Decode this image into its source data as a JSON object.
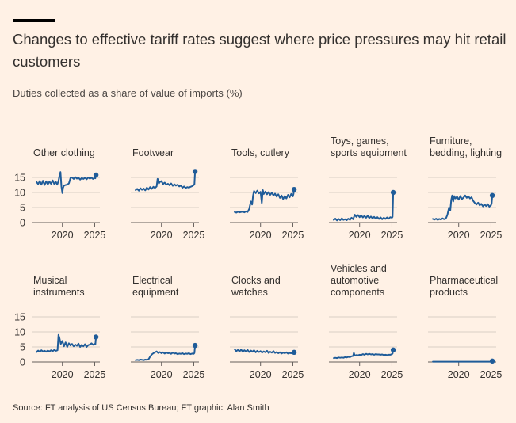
{
  "title": "Changes to effective tariff rates suggest where price pressures may hit retail customers",
  "subtitle": "Duties collected as a share of value of imports (%)",
  "source": "Source: FT analysis of US Census Bureau; FT graphic: Alan Smith",
  "colors": {
    "background": "#fff1e5",
    "line": "#1f5c99",
    "grid": "#d9cec5",
    "text": "#33302e"
  },
  "chart_data": [
    {
      "type": "line",
      "title_lines": [
        "Other clothing"
      ],
      "y_ticks": [
        0,
        5,
        10,
        15
      ],
      "x_ticks": [
        2020,
        2025
      ],
      "xlim": [
        2015.5,
        2025.8
      ],
      "ylim": [
        0,
        18
      ],
      "series": [
        {
          "x": [
            2016,
            2016.25,
            2016.5,
            2016.75,
            2017,
            2017.25,
            2017.5,
            2017.75,
            2018,
            2018.25,
            2018.5,
            2018.75,
            2019,
            2019.2,
            2019.4,
            2019.55,
            2019.7,
            2019.85,
            2020,
            2020.1,
            2020.25,
            2020.5,
            2020.75,
            2021,
            2021.25,
            2021.5,
            2021.75,
            2022,
            2022.25,
            2022.5,
            2022.75,
            2023,
            2023.25,
            2023.5,
            2023.75,
            2024,
            2024.25,
            2024.5,
            2024.75,
            2025,
            2025.1,
            2025.2
          ],
          "y": [
            13.5,
            12.8,
            13.8,
            12.6,
            13.9,
            12.5,
            13.7,
            12.7,
            13.6,
            12.9,
            14.0,
            12.8,
            13.5,
            12.6,
            13.8,
            15.5,
            16.8,
            12.0,
            9.8,
            11.5,
            12.3,
            12.5,
            12.6,
            13.0,
            14.8,
            15.0,
            14.5,
            15.1,
            14.6,
            14.9,
            14.3,
            14.8,
            14.5,
            14.9,
            14.4,
            15.0,
            14.6,
            14.9,
            14.5,
            14.8,
            14.7,
            15.8
          ]
        }
      ]
    },
    {
      "type": "line",
      "title_lines": [
        "Footwear"
      ],
      "y_ticks": [
        0,
        5,
        10,
        15
      ],
      "x_ticks": [
        2020,
        2025
      ],
      "xlim": [
        2015.5,
        2025.8
      ],
      "ylim": [
        0,
        18
      ],
      "series": [
        {
          "x": [
            2016,
            2016.25,
            2016.5,
            2016.75,
            2017,
            2017.25,
            2017.5,
            2017.75,
            2018,
            2018.25,
            2018.5,
            2018.75,
            2019,
            2019.25,
            2019.4,
            2019.5,
            2019.6,
            2019.75,
            2020,
            2020.25,
            2020.5,
            2020.75,
            2021,
            2021.25,
            2021.5,
            2021.75,
            2022,
            2022.25,
            2022.5,
            2022.75,
            2023,
            2023.25,
            2023.5,
            2023.75,
            2024,
            2024.25,
            2024.5,
            2024.75,
            2025,
            2025.1,
            2025.2
          ],
          "y": [
            10.8,
            11.2,
            10.6,
            11.4,
            10.9,
            11.3,
            10.7,
            11.6,
            11.0,
            11.8,
            11.2,
            11.9,
            11.5,
            12.0,
            14.5,
            14.2,
            13.0,
            13.5,
            13.8,
            12.8,
            13.3,
            12.6,
            12.9,
            12.4,
            13.0,
            12.2,
            12.7,
            12.3,
            12.6,
            12.0,
            12.3,
            11.6,
            12.0,
            11.5,
            11.8,
            11.6,
            11.9,
            12.1,
            12.5,
            12.8,
            17.0
          ]
        }
      ]
    },
    {
      "type": "line",
      "title_lines": [
        "Tools, cutlery"
      ],
      "y_ticks": [
        0,
        5,
        10,
        15
      ],
      "x_ticks": [
        2020,
        2025
      ],
      "xlim": [
        2015.5,
        2025.8
      ],
      "ylim": [
        0,
        18
      ],
      "series": [
        {
          "x": [
            2016,
            2016.25,
            2016.5,
            2016.75,
            2017,
            2017.25,
            2017.5,
            2017.75,
            2018,
            2018.25,
            2018.5,
            2018.7,
            2018.85,
            2019,
            2019.25,
            2019.5,
            2019.75,
            2020,
            2020.2,
            2020.35,
            2020.5,
            2020.75,
            2021,
            2021.25,
            2021.5,
            2021.75,
            2022,
            2022.25,
            2022.5,
            2022.75,
            2023,
            2023.25,
            2023.5,
            2023.75,
            2024,
            2024.25,
            2024.5,
            2024.75,
            2025,
            2025.1,
            2025.2
          ],
          "y": [
            3.5,
            3.3,
            3.6,
            3.4,
            3.5,
            3.6,
            3.4,
            3.7,
            3.5,
            4.5,
            7.0,
            6.0,
            9.0,
            10.5,
            9.8,
            10.6,
            9.7,
            10.2,
            6.5,
            10.8,
            9.5,
            10.3,
            9.4,
            10.1,
            9.2,
            9.9,
            9.0,
            9.6,
            8.6,
            9.4,
            8.2,
            9.0,
            7.8,
            8.8,
            8.0,
            9.2,
            8.4,
            9.5,
            8.7,
            9.5,
            11.0
          ]
        }
      ]
    },
    {
      "type": "line",
      "title_lines": [
        "Toys, games,",
        "sports equipment"
      ],
      "y_ticks": [
        0,
        5,
        10,
        15
      ],
      "x_ticks": [
        2020,
        2025
      ],
      "xlim": [
        2015.5,
        2025.8
      ],
      "ylim": [
        0,
        18
      ],
      "series": [
        {
          "x": [
            2016,
            2016.25,
            2016.5,
            2016.75,
            2017,
            2017.25,
            2017.5,
            2017.75,
            2018,
            2018.25,
            2018.5,
            2018.75,
            2019,
            2019.25,
            2019.5,
            2019.75,
            2020,
            2020.25,
            2020.5,
            2020.75,
            2021,
            2021.25,
            2021.5,
            2021.75,
            2022,
            2022.25,
            2022.5,
            2022.75,
            2023,
            2023.25,
            2023.5,
            2023.75,
            2024,
            2024.25,
            2024.5,
            2024.75,
            2025,
            2025.1,
            2025.2
          ],
          "y": [
            0.9,
            1.3,
            0.7,
            1.2,
            0.8,
            1.4,
            0.9,
            1.1,
            0.8,
            1.3,
            0.9,
            1.6,
            1.1,
            2.6,
            1.9,
            2.5,
            1.8,
            2.4,
            1.7,
            2.2,
            1.6,
            2.3,
            1.5,
            2.0,
            1.4,
            1.9,
            1.3,
            1.8,
            1.2,
            1.7,
            1.1,
            1.6,
            1.2,
            1.7,
            1.3,
            1.8,
            1.6,
            1.9,
            10.0
          ]
        }
      ]
    },
    {
      "type": "line",
      "title_lines": [
        "Furniture,",
        "bedding, lighting"
      ],
      "y_ticks": [
        0,
        5,
        10,
        15
      ],
      "x_ticks": [
        2020,
        2025
      ],
      "xlim": [
        2015.5,
        2025.8
      ],
      "ylim": [
        0,
        18
      ],
      "series": [
        {
          "x": [
            2016,
            2016.25,
            2016.5,
            2016.75,
            2017,
            2017.25,
            2017.5,
            2017.75,
            2018,
            2018.25,
            2018.5,
            2018.7,
            2018.85,
            2019,
            2019.15,
            2019.3,
            2019.5,
            2019.75,
            2020,
            2020.25,
            2020.5,
            2020.75,
            2021,
            2021.25,
            2021.5,
            2021.75,
            2022,
            2022.25,
            2022.5,
            2022.75,
            2023,
            2023.25,
            2023.5,
            2023.75,
            2024,
            2024.25,
            2024.5,
            2024.75,
            2025,
            2025.1,
            2025.2
          ],
          "y": [
            1.2,
            1.0,
            1.3,
            0.9,
            1.2,
            1.0,
            1.4,
            1.1,
            1.3,
            2.5,
            5.0,
            4.0,
            7.5,
            9.0,
            7.0,
            8.8,
            8.0,
            8.6,
            7.6,
            8.8,
            7.8,
            8.3,
            9.0,
            8.2,
            8.7,
            8.0,
            8.4,
            7.2,
            6.5,
            6.0,
            6.6,
            5.7,
            6.2,
            5.4,
            6.0,
            5.5,
            6.1,
            5.3,
            5.8,
            6.4,
            9.0
          ]
        }
      ]
    },
    {
      "type": "line",
      "title_lines": [
        "Musical",
        "instruments"
      ],
      "y_ticks": [
        0,
        5,
        10,
        15
      ],
      "x_ticks": [
        2020,
        2025
      ],
      "xlim": [
        2015.5,
        2025.8
      ],
      "ylim": [
        0,
        18
      ],
      "series": [
        {
          "x": [
            2016,
            2016.25,
            2016.5,
            2016.75,
            2017,
            2017.25,
            2017.5,
            2017.75,
            2018,
            2018.25,
            2018.5,
            2018.75,
            2019,
            2019.25,
            2019.4,
            2019.55,
            2019.75,
            2020,
            2020.25,
            2020.5,
            2020.75,
            2021,
            2021.25,
            2021.5,
            2021.75,
            2022,
            2022.25,
            2022.5,
            2022.75,
            2023,
            2023.25,
            2023.5,
            2023.75,
            2024,
            2024.25,
            2024.5,
            2024.75,
            2025,
            2025.1,
            2025.2
          ],
          "y": [
            3.3,
            3.8,
            3.4,
            3.9,
            3.5,
            3.7,
            3.4,
            3.8,
            3.5,
            3.9,
            3.6,
            4.0,
            3.7,
            3.9,
            9.0,
            8.0,
            6.0,
            7.0,
            5.2,
            6.5,
            5.0,
            6.2,
            5.5,
            6.0,
            5.2,
            5.8,
            5.4,
            6.1,
            5.0,
            5.7,
            5.2,
            5.9,
            5.0,
            5.6,
            5.8,
            6.2,
            5.7,
            6.0,
            5.8,
            8.3
          ]
        }
      ]
    },
    {
      "type": "line",
      "title_lines": [
        "Electrical",
        "equipment"
      ],
      "y_ticks": [
        0,
        5,
        10,
        15
      ],
      "x_ticks": [
        2020,
        2025
      ],
      "xlim": [
        2015.5,
        2025.8
      ],
      "ylim": [
        0,
        18
      ],
      "series": [
        {
          "x": [
            2016,
            2016.25,
            2016.5,
            2016.75,
            2017,
            2017.25,
            2017.5,
            2017.75,
            2018,
            2018.25,
            2018.5,
            2018.75,
            2019,
            2019.25,
            2019.5,
            2019.75,
            2020,
            2020.25,
            2020.5,
            2020.75,
            2021,
            2021.25,
            2021.5,
            2021.75,
            2022,
            2022.25,
            2022.5,
            2022.75,
            2023,
            2023.25,
            2023.5,
            2023.75,
            2024,
            2024.25,
            2024.5,
            2024.75,
            2025,
            2025.1,
            2025.2
          ],
          "y": [
            0.6,
            0.7,
            0.6,
            0.8,
            0.7,
            0.6,
            0.8,
            0.7,
            0.9,
            1.8,
            2.5,
            2.9,
            3.2,
            3.5,
            3.0,
            3.3,
            2.9,
            3.2,
            2.8,
            3.1,
            2.9,
            3.0,
            2.7,
            3.1,
            2.8,
            2.9,
            2.6,
            2.8,
            2.7,
            2.9,
            2.6,
            2.8,
            2.7,
            2.9,
            2.6,
            2.8,
            2.7,
            3.0,
            5.5
          ]
        }
      ]
    },
    {
      "type": "line",
      "title_lines": [
        "Clocks and",
        "watches"
      ],
      "y_ticks": [
        0,
        5,
        10,
        15
      ],
      "x_ticks": [
        2020,
        2025
      ],
      "xlim": [
        2015.5,
        2025.8
      ],
      "ylim": [
        0,
        18
      ],
      "series": [
        {
          "x": [
            2016,
            2016.25,
            2016.5,
            2016.75,
            2017,
            2017.25,
            2017.5,
            2017.75,
            2018,
            2018.25,
            2018.5,
            2018.75,
            2019,
            2019.25,
            2019.5,
            2019.75,
            2020,
            2020.25,
            2020.5,
            2020.75,
            2021,
            2021.25,
            2021.5,
            2021.75,
            2022,
            2022.25,
            2022.5,
            2022.75,
            2023,
            2023.25,
            2023.5,
            2023.75,
            2024,
            2024.25,
            2024.5,
            2024.75,
            2025,
            2025.1,
            2025.2
          ],
          "y": [
            4.2,
            3.6,
            4.0,
            3.5,
            4.1,
            3.4,
            3.9,
            3.5,
            4.0,
            3.3,
            3.8,
            3.4,
            3.9,
            3.2,
            3.7,
            3.3,
            3.6,
            3.1,
            3.5,
            3.2,
            3.7,
            3.0,
            3.4,
            3.1,
            3.6,
            3.0,
            3.3,
            2.9,
            3.2,
            2.8,
            3.1,
            2.9,
            3.2,
            2.8,
            3.0,
            2.9,
            3.1,
            2.9,
            3.2
          ]
        }
      ]
    },
    {
      "type": "line",
      "title_lines": [
        "Vehicles and",
        "automotive",
        "components"
      ],
      "y_ticks": [
        0,
        5,
        10,
        15
      ],
      "x_ticks": [
        2020,
        2025
      ],
      "xlim": [
        2015.5,
        2025.8
      ],
      "ylim": [
        0,
        18
      ],
      "series": [
        {
          "x": [
            2016,
            2016.25,
            2016.5,
            2016.75,
            2017,
            2017.25,
            2017.5,
            2017.75,
            2018,
            2018.25,
            2018.5,
            2018.75,
            2019,
            2019.1,
            2019.25,
            2019.5,
            2019.75,
            2020,
            2020.25,
            2020.5,
            2020.75,
            2021,
            2021.25,
            2021.5,
            2021.75,
            2022,
            2022.25,
            2022.5,
            2022.75,
            2023,
            2023.25,
            2023.5,
            2023.75,
            2024,
            2024.25,
            2024.5,
            2024.75,
            2025,
            2025.1,
            2025.2
          ],
          "y": [
            1.3,
            1.4,
            1.3,
            1.5,
            1.4,
            1.5,
            1.4,
            1.6,
            1.5,
            1.7,
            1.6,
            1.9,
            2.0,
            3.0,
            2.1,
            2.3,
            2.2,
            2.4,
            2.3,
            2.6,
            2.4,
            2.7,
            2.5,
            2.7,
            2.5,
            2.6,
            2.4,
            2.6,
            2.5,
            2.5,
            2.4,
            2.5,
            2.3,
            2.4,
            2.3,
            2.4,
            2.4,
            2.6,
            2.8,
            4.0
          ]
        }
      ]
    },
    {
      "type": "line",
      "title_lines": [
        "Pharmaceutical",
        "products"
      ],
      "y_ticks": [
        0,
        5,
        10,
        15
      ],
      "x_ticks": [
        2020,
        2025
      ],
      "xlim": [
        2015.5,
        2025.8
      ],
      "ylim": [
        0,
        18
      ],
      "series": [
        {
          "x": [
            2016,
            2017,
            2018,
            2019,
            2020,
            2021,
            2022,
            2023,
            2024,
            2025,
            2025.1,
            2025.2
          ],
          "y": [
            0.1,
            0.1,
            0.1,
            0.1,
            0.1,
            0.1,
            0.1,
            0.1,
            0.1,
            0.1,
            0.1,
            0.3
          ]
        }
      ]
    }
  ]
}
